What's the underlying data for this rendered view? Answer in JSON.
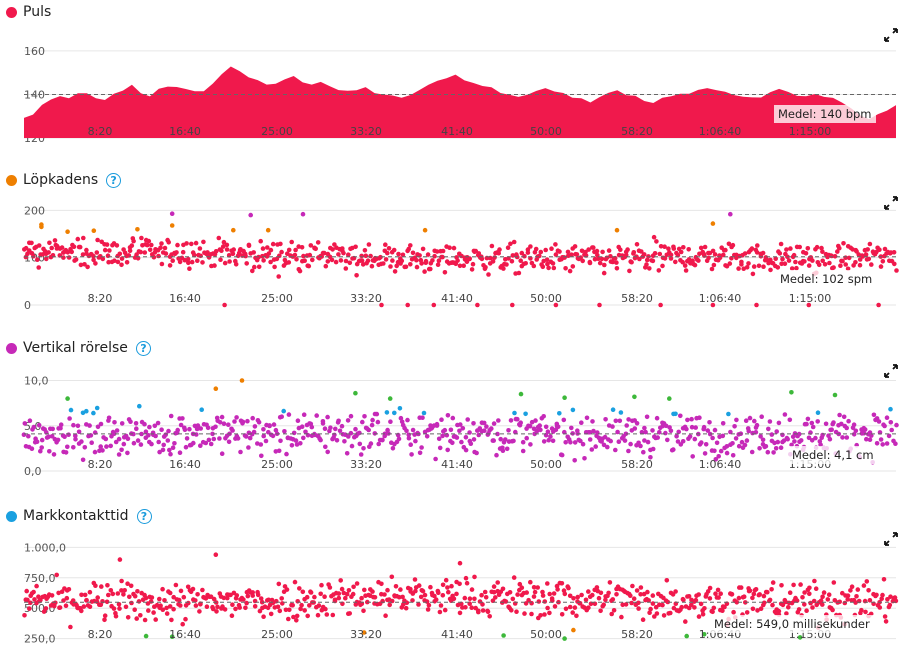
{
  "x_ticks": [
    "8:20",
    "16:40",
    "25:00",
    "33:20",
    "41:40",
    "50:00",
    "58:20",
    "1:06:40",
    "1:15:00"
  ],
  "colors": {
    "red": "#f0194c",
    "orange": "#ee7f00",
    "magenta": "#c629b8",
    "blue": "#1aa0e0",
    "green": "#3db83a",
    "grid": "#e6e6e6",
    "dash": "#666666"
  },
  "chart_data": [
    {
      "type": "area",
      "title": "Puls",
      "ylim": [
        120,
        165
      ],
      "yticks": [
        "160",
        "140",
        "120"
      ],
      "ytick_values": [
        160,
        140,
        120
      ],
      "average": 140,
      "average_label": "Medel: 140 bpm",
      "series": [
        {
          "values": [
            129,
            131,
            135,
            137,
            139,
            138,
            141,
            140,
            138,
            137,
            140,
            142,
            144,
            141,
            139,
            143,
            144,
            143,
            142,
            141,
            142,
            145,
            149,
            153,
            151,
            148,
            146,
            144,
            145,
            147,
            148,
            146,
            145,
            146,
            144,
            142,
            141,
            142,
            143,
            141,
            140,
            139,
            138,
            140,
            142,
            144,
            146,
            148,
            149,
            147,
            145,
            144,
            143,
            141,
            140,
            139,
            140,
            141,
            143,
            142,
            141,
            139,
            138,
            137,
            139,
            141,
            142,
            140,
            139,
            137,
            136,
            138,
            139,
            140,
            141,
            142,
            143,
            142,
            141,
            140,
            139,
            138,
            139,
            141,
            142,
            141,
            140,
            139,
            140,
            139,
            138,
            136,
            134,
            130,
            128,
            131,
            133,
            135
          ]
        }
      ]
    },
    {
      "type": "scatter",
      "title": "Löpkadens",
      "ylim": [
        0,
        205
      ],
      "yticks": [
        "200",
        "100",
        "0"
      ],
      "ytick_values": [
        200,
        100,
        0
      ],
      "average": 102,
      "average_label": "Medel: 102 spm",
      "color_bands": [
        {
          "min": 185,
          "color": "magenta"
        },
        {
          "min": 174,
          "color": "green"
        },
        {
          "min": 153,
          "color": "orange"
        },
        {
          "min": 0,
          "color": "red"
        }
      ],
      "trend": [
        {
          "t": 0,
          "v": 112
        },
        {
          "t": 0.18,
          "v": 110
        },
        {
          "t": 0.3,
          "v": 104
        },
        {
          "t": 0.42,
          "v": 99
        },
        {
          "t": 0.55,
          "v": 97
        },
        {
          "t": 0.7,
          "v": 98
        },
        {
          "t": 0.78,
          "v": 104
        },
        {
          "t": 0.88,
          "v": 98
        },
        {
          "t": 1,
          "v": 103
        }
      ],
      "spread": 15,
      "outliers": [
        {
          "t": 0.23,
          "v": 0
        },
        {
          "t": 0.41,
          "v": 0
        },
        {
          "t": 0.44,
          "v": 0
        },
        {
          "t": 0.47,
          "v": 0
        },
        {
          "t": 0.52,
          "v": 0
        },
        {
          "t": 0.56,
          "v": 0
        },
        {
          "t": 0.61,
          "v": 0
        },
        {
          "t": 0.66,
          "v": 0
        },
        {
          "t": 0.73,
          "v": 0
        },
        {
          "t": 0.79,
          "v": 0
        },
        {
          "t": 0.84,
          "v": 0
        },
        {
          "t": 0.9,
          "v": 0
        },
        {
          "t": 0.98,
          "v": 0
        },
        {
          "t": 0.17,
          "v": 193
        },
        {
          "t": 0.26,
          "v": 190
        },
        {
          "t": 0.32,
          "v": 192
        },
        {
          "t": 0.81,
          "v": 192
        },
        {
          "t": 0.02,
          "v": 165
        },
        {
          "t": 0.13,
          "v": 160
        },
        {
          "t": 0.24,
          "v": 158
        },
        {
          "t": 0.28,
          "v": 158
        },
        {
          "t": 0.46,
          "v": 158
        },
        {
          "t": 0.68,
          "v": 158
        },
        {
          "t": 0.79,
          "v": 172
        },
        {
          "t": 0.05,
          "v": 155
        },
        {
          "t": 0.02,
          "v": 170
        },
        {
          "t": 0.17,
          "v": 168
        },
        {
          "t": 0.08,
          "v": 157
        }
      ]
    },
    {
      "type": "scatter",
      "title": "Vertikal rörelse",
      "ylim": [
        0,
        10.5
      ],
      "yticks": [
        "10,0",
        "5,0",
        "0,0"
      ],
      "ytick_values": [
        10,
        5,
        0
      ],
      "average": 4.1,
      "average_label": "Medel: 4,1 cm",
      "color_bands": [
        {
          "min": 9.0,
          "color": "orange"
        },
        {
          "min": 7.8,
          "color": "green"
        },
        {
          "min": 6.3,
          "color": "blue"
        },
        {
          "min": 0,
          "color": "magenta"
        }
      ],
      "trend": [
        {
          "t": 0,
          "v": 4.1
        },
        {
          "t": 0.3,
          "v": 4.2
        },
        {
          "t": 0.5,
          "v": 4.3
        },
        {
          "t": 0.8,
          "v": 4.0
        },
        {
          "t": 1,
          "v": 4.3
        }
      ],
      "spread": 1.15,
      "outliers": [
        {
          "t": 0.25,
          "v": 10.0
        },
        {
          "t": 0.22,
          "v": 9.1
        },
        {
          "t": 0.38,
          "v": 8.6
        },
        {
          "t": 0.42,
          "v": 8.0
        },
        {
          "t": 0.57,
          "v": 8.5
        },
        {
          "t": 0.7,
          "v": 8.2
        },
        {
          "t": 0.88,
          "v": 8.7
        },
        {
          "t": 0.93,
          "v": 8.4
        },
        {
          "t": 0.05,
          "v": 8.0
        },
        {
          "t": 0.62,
          "v": 8.1
        },
        {
          "t": 0.74,
          "v": 8.0
        }
      ]
    },
    {
      "type": "scatter",
      "title": "Markkontakttid",
      "ylim": [
        230,
        1020
      ],
      "yticks": [
        "1.000,0",
        "750,0",
        "500,0",
        "250,0"
      ],
      "ytick_values": [
        1000,
        750,
        500,
        250
      ],
      "average": 549,
      "average_label": "Medel: 549,0 millisekunder",
      "color_bands": [
        {
          "min": 325,
          "color": "red"
        },
        {
          "min": 290,
          "color": "orange"
        },
        {
          "min": 0,
          "color": "green"
        }
      ],
      "trend": [
        {
          "t": 0,
          "v": 560
        },
        {
          "t": 0.2,
          "v": 540
        },
        {
          "t": 0.4,
          "v": 600
        },
        {
          "t": 0.6,
          "v": 580
        },
        {
          "t": 0.8,
          "v": 560
        },
        {
          "t": 1,
          "v": 550
        }
      ],
      "spread": 80,
      "outliers": [
        {
          "t": 0.14,
          "v": 270
        },
        {
          "t": 0.17,
          "v": 265
        },
        {
          "t": 0.39,
          "v": 300
        },
        {
          "t": 0.55,
          "v": 275
        },
        {
          "t": 0.62,
          "v": 250
        },
        {
          "t": 0.63,
          "v": 320
        },
        {
          "t": 0.78,
          "v": 285
        },
        {
          "t": 0.89,
          "v": 260
        },
        {
          "t": 0.76,
          "v": 270
        },
        {
          "t": 0.22,
          "v": 940
        },
        {
          "t": 0.11,
          "v": 900
        },
        {
          "t": 0.5,
          "v": 870
        }
      ]
    }
  ]
}
